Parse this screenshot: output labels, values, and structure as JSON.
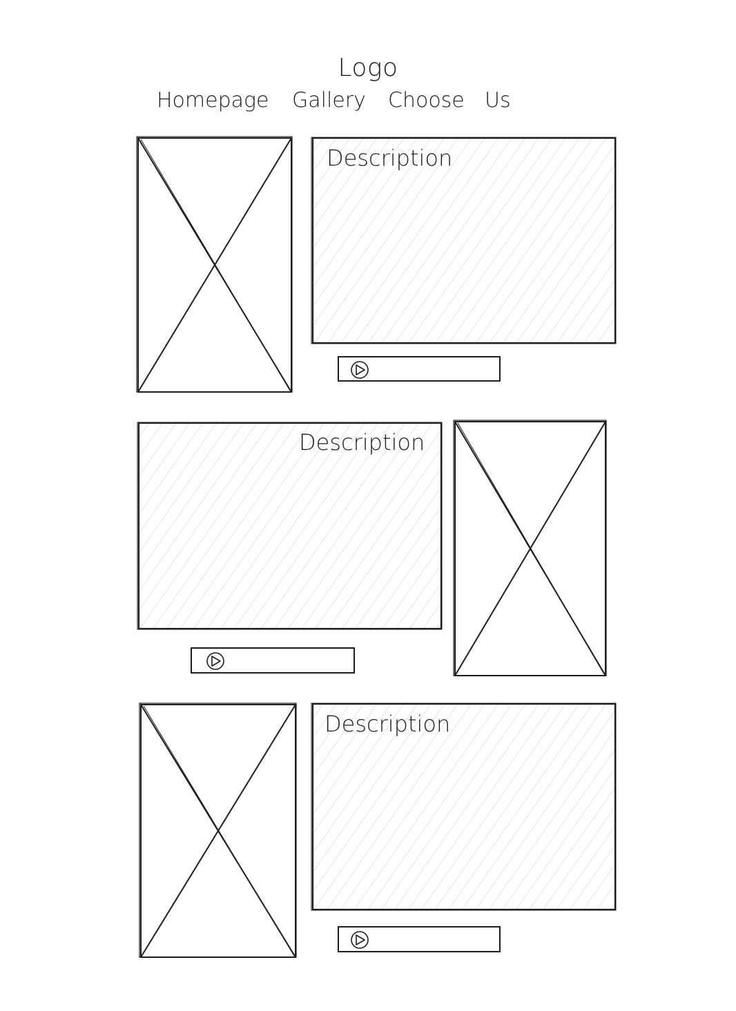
{
  "header": {
    "logo": "Logo",
    "nav": [
      "Homepage",
      "Gallery",
      "Choose",
      "Us"
    ]
  },
  "sections": [
    {
      "description_label": "Description",
      "image_side": "left"
    },
    {
      "description_label": "Description",
      "image_side": "right"
    },
    {
      "description_label": "Description",
      "image_side": "left"
    }
  ],
  "colors": {
    "stroke": "#1e1e1e",
    "hatch": "#cfcfcf",
    "background": "#ffffff"
  },
  "icons": {
    "play": "play-circle-icon",
    "image_placeholder": "image-placeholder-icon"
  }
}
